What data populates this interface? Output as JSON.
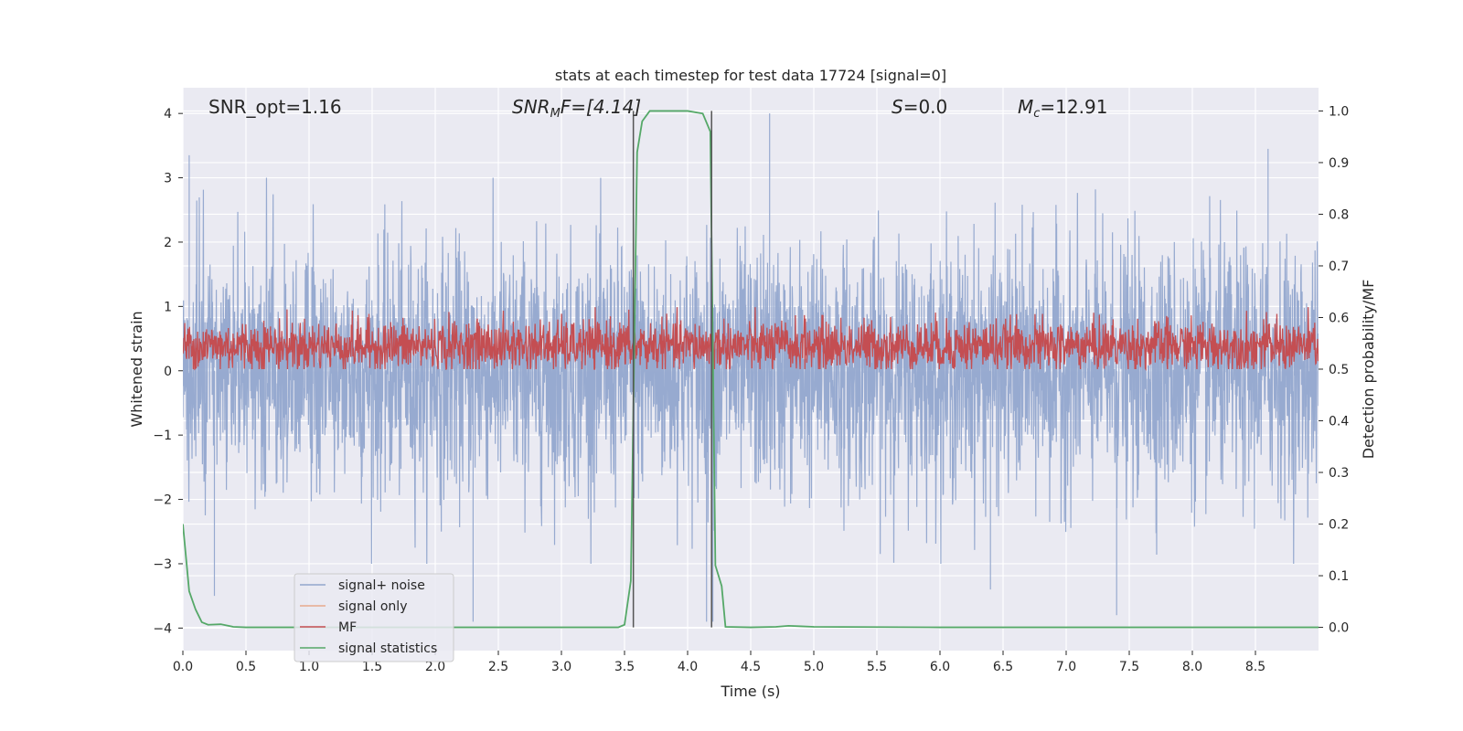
{
  "chart_data": {
    "type": "line",
    "title": "stats at each timestep for test data 17724 [signal=0]",
    "xlabel": "Time (s)",
    "ylabel_left": "Whitened strain",
    "ylabel_right": "Detection probability/MF",
    "xlim": [
      0.0,
      9.0
    ],
    "ylim_left": [
      -4.35,
      4.4
    ],
    "ylim_right": [
      -0.045,
      1.045
    ],
    "x_ticks": [
      "0.0",
      "0.5",
      "1.0",
      "1.5",
      "2.0",
      "2.5",
      "3.0",
      "3.5",
      "4.0",
      "4.5",
      "5.0",
      "5.5",
      "6.0",
      "6.5",
      "7.0",
      "7.5",
      "8.0",
      "8.5"
    ],
    "x_tick_values": [
      0.0,
      0.5,
      1.0,
      1.5,
      2.0,
      2.5,
      3.0,
      3.5,
      4.0,
      4.5,
      5.0,
      5.5,
      6.0,
      6.5,
      7.0,
      7.5,
      8.0,
      8.5
    ],
    "y_left_ticks": [
      "4",
      "3",
      "2",
      "1",
      "0",
      "−1",
      "−2",
      "−3",
      "−4"
    ],
    "y_left_tick_values": [
      4,
      3,
      2,
      1,
      0,
      -1,
      -2,
      -3,
      -4
    ],
    "y_right_ticks": [
      "1.0",
      "0.9",
      "0.8",
      "0.7",
      "0.6",
      "0.5",
      "0.4",
      "0.3",
      "0.2",
      "0.1",
      "0.0"
    ],
    "y_right_tick_values": [
      1.0,
      0.9,
      0.8,
      0.7,
      0.6,
      0.5,
      0.4,
      0.3,
      0.2,
      0.1,
      0.0
    ],
    "grid": true,
    "legend_placement": "lower-left",
    "annotations": {
      "snr_opt": "SNR_opt=1.16",
      "snr_mf_name": "SNR",
      "snr_mf_sub": "M",
      "snr_mf_tail": "F=[4.14]",
      "s_name": "S",
      "s_value": "=0.0",
      "mc_name": "M",
      "mc_sub": "c",
      "mc_value": "=12.91"
    },
    "vertical_lines_x": [
      3.57,
      4.19
    ],
    "series": [
      {
        "name": "signal+ noise",
        "color": "#92a6cd",
        "axis": "left",
        "style": "noise",
        "std": 0.95,
        "extremes": [
          [
            0.05,
            3.35
          ],
          [
            0.25,
            -3.5
          ],
          [
            2.3,
            -3.9
          ],
          [
            4.15,
            -3.9
          ],
          [
            4.2,
            -3.9
          ],
          [
            4.65,
            4.0
          ],
          [
            6.4,
            -3.4
          ],
          [
            7.4,
            -3.8
          ],
          [
            8.6,
            3.45
          ]
        ]
      },
      {
        "name": "signal only",
        "color": "#e8a98c",
        "axis": "left",
        "values": []
      },
      {
        "name": "MF",
        "color": "#c44e52",
        "axis": "right",
        "style": "noise",
        "mean": 0.545,
        "std": 0.025,
        "min": 0.5,
        "max": 0.62
      },
      {
        "name": "signal statistics",
        "color": "#55a868",
        "axis": "right",
        "x": [
          0.0,
          0.05,
          0.1,
          0.15,
          0.2,
          0.3,
          0.4,
          0.5,
          1.0,
          2.0,
          3.0,
          3.45,
          3.5,
          3.55,
          3.6,
          3.64,
          3.7,
          4.0,
          4.12,
          4.18,
          4.22,
          4.27,
          4.3,
          4.5,
          4.7,
          4.8,
          4.9,
          5.0,
          6.0,
          7.0,
          8.0,
          9.0
        ],
        "y": [
          0.2,
          0.07,
          0.035,
          0.01,
          0.005,
          0.006,
          0.001,
          0.0,
          0.0,
          0.0,
          0.0,
          0.0,
          0.005,
          0.09,
          0.92,
          0.98,
          1.0,
          1.0,
          0.995,
          0.96,
          0.12,
          0.08,
          0.001,
          0.0,
          0.001,
          0.003,
          0.002,
          0.001,
          0.0,
          0.0,
          0.0,
          0.0
        ]
      }
    ]
  }
}
